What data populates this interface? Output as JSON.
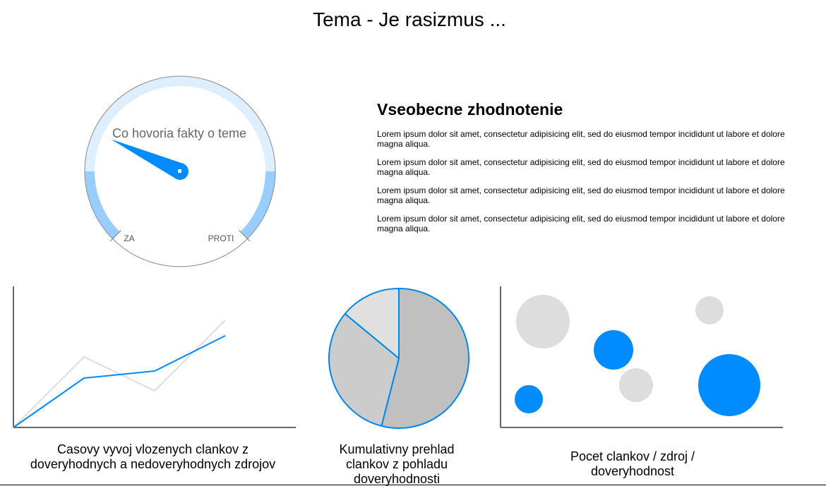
{
  "page": {
    "title": "Tema - Je rasizmus ..."
  },
  "gauge": {
    "label": "Co hovoria fakty o teme",
    "left_label": "ZA",
    "right_label": "PROTI",
    "needle_angle_deg": 205,
    "colors": {
      "track": "#ddeeff",
      "accent": "#99ccff",
      "needle": "#008cff",
      "outline": "#8c8c8c"
    }
  },
  "summary": {
    "heading": "Vseobecne zhodnotenie",
    "paragraphs": [
      "Lorem ipsum dolor sit amet, consectetur adipisicing elit, sed do eiusmod tempor incididunt ut labore et dolore magna aliqua.",
      "Lorem ipsum dolor sit amet, consectetur adipisicing elit, sed do eiusmod tempor incididunt ut labore et dolore magna aliqua.",
      "Lorem ipsum dolor sit amet, consectetur adipisicing elit, sed do eiusmod tempor incididunt ut labore et dolore magna aliqua.",
      "Lorem ipsum dolor sit amet, consectetur adipisicing elit, sed do eiusmod tempor incididunt ut labore et dolore magna aliqua."
    ]
  },
  "chart_data": [
    {
      "type": "line",
      "title": "Casovy vyvoj vlozenych clankov z doveryhodnych a nedoveryhodnych zdrojov",
      "x": [
        0,
        1,
        2,
        3
      ],
      "xlim": [
        0,
        4
      ],
      "ylim": [
        0,
        100
      ],
      "grid": false,
      "series": [
        {
          "color": "#dddddd",
          "values": [
            0,
            50,
            26,
            76
          ]
        },
        {
          "color": "#008cff",
          "values": [
            0,
            35,
            40,
            65
          ]
        }
      ]
    },
    {
      "type": "pie",
      "title": "Kumulativny prehlad clankov z pohladu doveryhodnosti",
      "slices": [
        {
          "value": 54,
          "color": "#c0c0c0"
        },
        {
          "value": 32,
          "color": "#cccccc"
        },
        {
          "value": 14,
          "color": "#e0e0e0"
        }
      ],
      "edge_color": "#0088ee"
    },
    {
      "type": "scatter",
      "title": "Pocet clankov / zdroj / doveryhodnost",
      "xlim": [
        0,
        100
      ],
      "ylim": [
        0,
        100
      ],
      "grid": false,
      "points": [
        {
          "x": 15,
          "y": 75,
          "size": 38,
          "color": "#dddddd"
        },
        {
          "x": 40,
          "y": 55,
          "size": 28,
          "color": "#008cff"
        },
        {
          "x": 48,
          "y": 30,
          "size": 24,
          "color": "#dddddd"
        },
        {
          "x": 74,
          "y": 83,
          "size": 20,
          "color": "#dddddd"
        },
        {
          "x": 81,
          "y": 30,
          "size": 44,
          "color": "#008cff"
        },
        {
          "x": 10,
          "y": 20,
          "size": 20,
          "color": "#008cff"
        }
      ]
    }
  ]
}
